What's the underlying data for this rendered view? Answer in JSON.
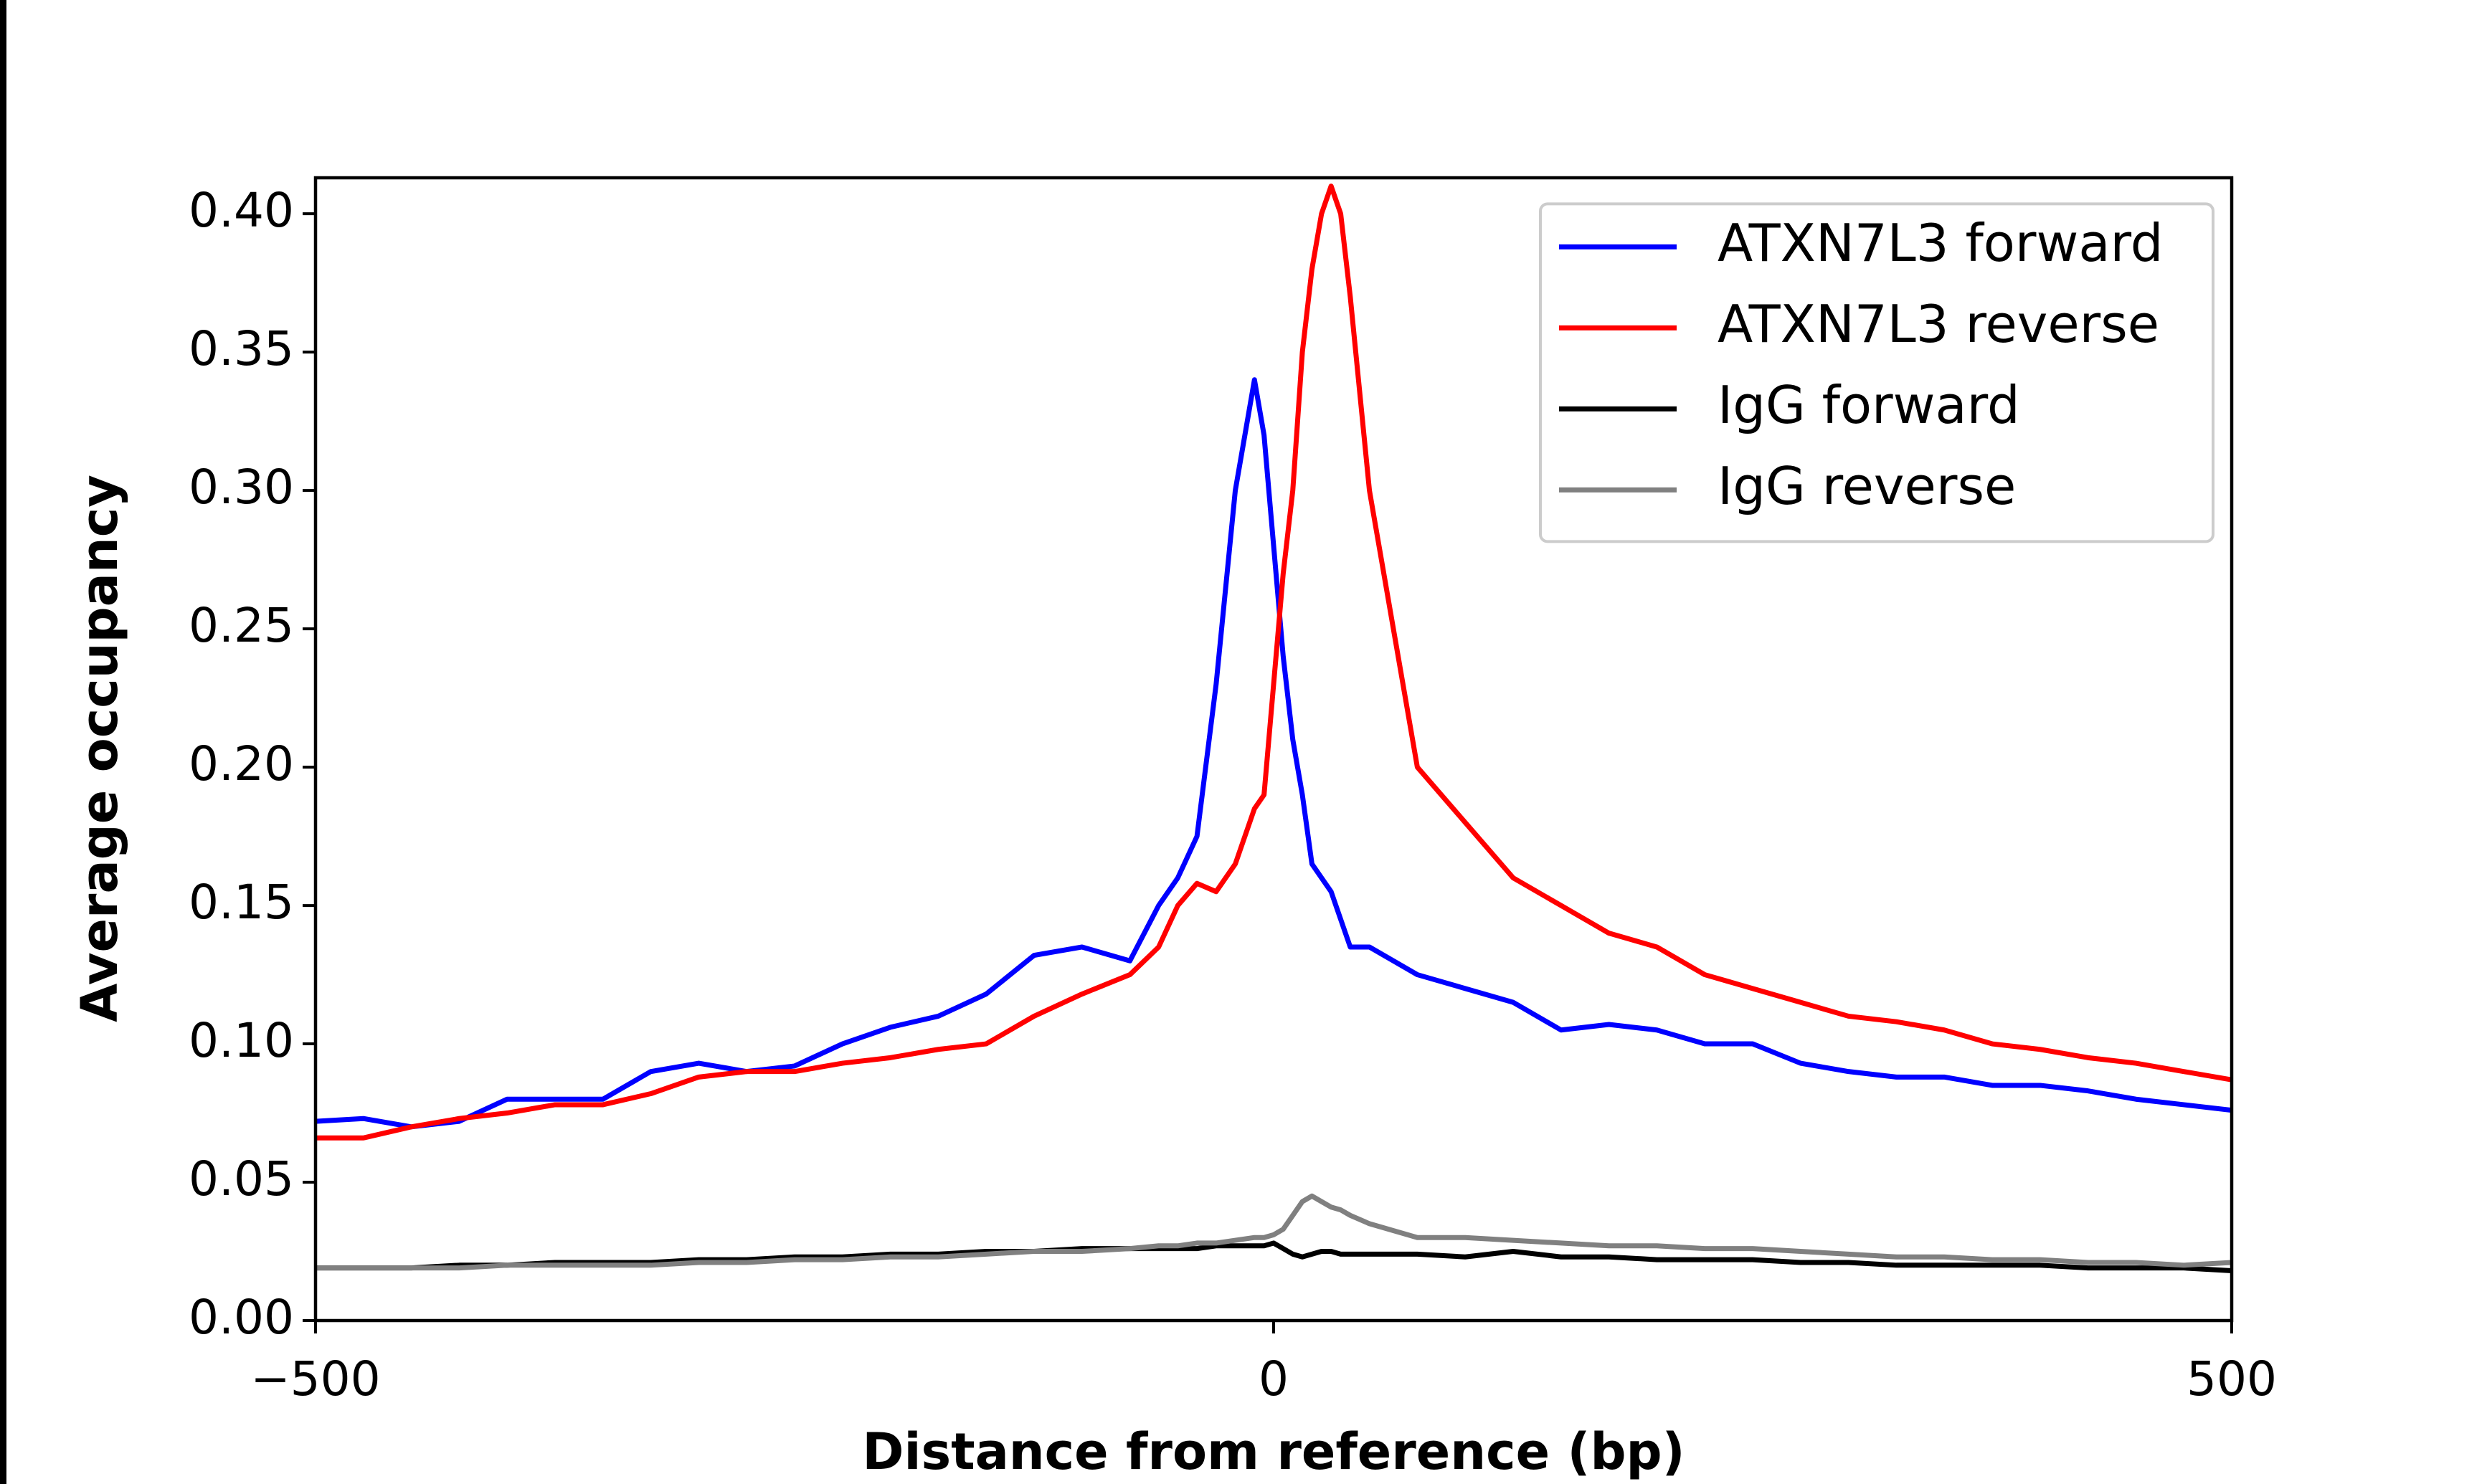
{
  "chart_data": {
    "type": "line",
    "xlabel": "Distance from reference (bp)",
    "ylabel": "Average occupancy",
    "x": [
      -500,
      -475,
      -450,
      -425,
      -400,
      -375,
      -350,
      -325,
      -300,
      -275,
      -250,
      -225,
      -200,
      -175,
      -150,
      -125,
      -100,
      -75,
      -60,
      -50,
      -40,
      -30,
      -20,
      -10,
      -5,
      0,
      5,
      10,
      15,
      20,
      25,
      30,
      35,
      40,
      50,
      75,
      100,
      125,
      150,
      175,
      200,
      225,
      250,
      275,
      300,
      325,
      350,
      375,
      400,
      425,
      450,
      475,
      500
    ],
    "series": [
      {
        "name": "ATXN7L3 forward",
        "color": "#0000ff",
        "values": [
          0.072,
          0.073,
          0.07,
          0.072,
          0.08,
          0.08,
          0.08,
          0.09,
          0.093,
          0.09,
          0.092,
          0.1,
          0.106,
          0.11,
          0.118,
          0.132,
          0.135,
          0.13,
          0.15,
          0.16,
          0.175,
          0.23,
          0.3,
          0.34,
          0.32,
          0.28,
          0.24,
          0.21,
          0.19,
          0.165,
          0.16,
          0.155,
          0.145,
          0.135,
          0.135,
          0.125,
          0.12,
          0.115,
          0.105,
          0.107,
          0.105,
          0.1,
          0.1,
          0.093,
          0.09,
          0.088,
          0.088,
          0.085,
          0.085,
          0.083,
          0.08,
          0.078,
          0.076
        ]
      },
      {
        "name": "ATXN7L3 reverse",
        "color": "#ff0000",
        "values": [
          0.066,
          0.066,
          0.07,
          0.073,
          0.075,
          0.078,
          0.078,
          0.082,
          0.088,
          0.09,
          0.09,
          0.093,
          0.095,
          0.098,
          0.1,
          0.11,
          0.118,
          0.125,
          0.135,
          0.15,
          0.158,
          0.155,
          0.165,
          0.185,
          0.19,
          0.23,
          0.27,
          0.3,
          0.35,
          0.38,
          0.4,
          0.41,
          0.4,
          0.37,
          0.3,
          0.2,
          0.18,
          0.16,
          0.15,
          0.14,
          0.135,
          0.125,
          0.12,
          0.115,
          0.11,
          0.108,
          0.105,
          0.1,
          0.098,
          0.095,
          0.093,
          0.09,
          0.087
        ]
      },
      {
        "name": "IgG forward",
        "color": "#000000",
        "values": [
          0.019,
          0.019,
          0.019,
          0.02,
          0.02,
          0.021,
          0.021,
          0.021,
          0.022,
          0.022,
          0.023,
          0.023,
          0.024,
          0.024,
          0.025,
          0.025,
          0.026,
          0.026,
          0.026,
          0.026,
          0.026,
          0.027,
          0.027,
          0.027,
          0.027,
          0.028,
          0.026,
          0.024,
          0.023,
          0.024,
          0.025,
          0.025,
          0.024,
          0.024,
          0.024,
          0.024,
          0.023,
          0.025,
          0.023,
          0.023,
          0.022,
          0.022,
          0.022,
          0.021,
          0.021,
          0.02,
          0.02,
          0.02,
          0.02,
          0.019,
          0.019,
          0.019,
          0.018
        ]
      },
      {
        "name": "IgG reverse",
        "color": "#808080",
        "values": [
          0.019,
          0.019,
          0.019,
          0.019,
          0.02,
          0.02,
          0.02,
          0.02,
          0.021,
          0.021,
          0.022,
          0.022,
          0.023,
          0.023,
          0.024,
          0.025,
          0.025,
          0.026,
          0.027,
          0.027,
          0.028,
          0.028,
          0.029,
          0.03,
          0.03,
          0.031,
          0.033,
          0.038,
          0.043,
          0.045,
          0.043,
          0.041,
          0.04,
          0.038,
          0.035,
          0.03,
          0.03,
          0.029,
          0.028,
          0.027,
          0.027,
          0.026,
          0.026,
          0.025,
          0.024,
          0.023,
          0.023,
          0.022,
          0.022,
          0.021,
          0.021,
          0.02,
          0.021
        ]
      }
    ],
    "xlim": [
      -500,
      500
    ],
    "xticks": [
      {
        "value": -500,
        "label": "−500"
      },
      0,
      500
    ],
    "ylim": [
      0,
      0.413
    ],
    "yticks": [
      {
        "value": 0,
        "label": "0.00"
      },
      {
        "value": 0.05,
        "label": "0.05"
      },
      {
        "value": 0.1,
        "label": "0.10"
      },
      {
        "value": 0.15,
        "label": "0.15"
      },
      {
        "value": 0.2,
        "label": "0.20"
      },
      {
        "value": 0.25,
        "label": "0.25"
      },
      {
        "value": 0.3,
        "label": "0.30"
      },
      {
        "value": 0.35,
        "label": "0.35"
      },
      {
        "value": 0.4,
        "label": "0.40"
      }
    ],
    "grid": false,
    "legend_loc": "upper right"
  }
}
